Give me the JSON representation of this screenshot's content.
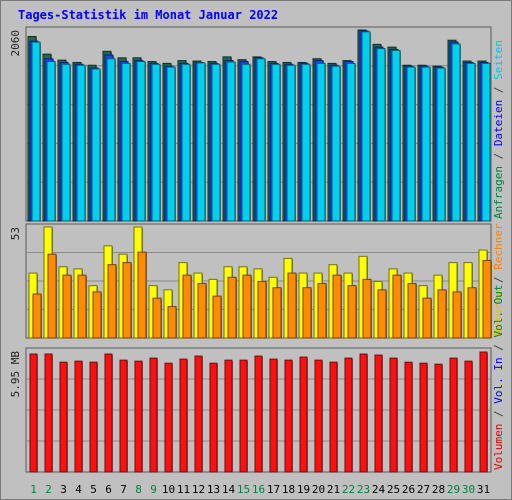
{
  "title": "Tages-Statistik im Monat Januar 2022",
  "chart_data": [
    {
      "type": "bar",
      "panel": "requests",
      "title": "Anfragen / Dateien / Seiten",
      "y_tick_label": "2060",
      "ylim": [
        0,
        2060
      ],
      "categories": [
        "1",
        "2",
        "3",
        "4",
        "5",
        "6",
        "7",
        "8",
        "9",
        "10",
        "11",
        "12",
        "13",
        "14",
        "15",
        "16",
        "17",
        "18",
        "19",
        "20",
        "21",
        "22",
        "23",
        "24",
        "25",
        "26",
        "27",
        "28",
        "29",
        "30",
        "31"
      ],
      "weekend_days": [
        "1",
        "2",
        "8",
        "9",
        "15",
        "16",
        "22",
        "23",
        "29",
        "30"
      ],
      "right_label": [
        {
          "text": "Anfragen",
          "color": "#008040"
        },
        {
          "text": " / ",
          "color": "#404040"
        },
        {
          "text": "Dateien",
          "color": "#0000ff"
        },
        {
          "text": " / ",
          "color": "#404040"
        },
        {
          "text": "Seiten",
          "color": "#00c8e0"
        }
      ],
      "series": [
        {
          "name": "Anfragen",
          "color": "#1e6b4a",
          "values": [
            1990,
            1800,
            1735,
            1710,
            1680,
            1830,
            1760,
            1760,
            1720,
            1700,
            1730,
            1725,
            1720,
            1770,
            1740,
            1770,
            1720,
            1710,
            1710,
            1750,
            1700,
            1730,
            2060,
            1905,
            1875,
            1680,
            1680,
            1670,
            1950,
            1725,
            1725
          ]
        },
        {
          "name": "Dateien",
          "color": "#2040ff",
          "values": [
            1940,
            1750,
            1710,
            1690,
            1650,
            1790,
            1720,
            1730,
            1700,
            1670,
            1700,
            1710,
            1700,
            1730,
            1720,
            1760,
            1700,
            1690,
            1700,
            1730,
            1680,
            1720,
            2050,
            1875,
            1850,
            1670,
            1670,
            1660,
            1930,
            1710,
            1710
          ]
        },
        {
          "name": "Seiten",
          "color": "#00d0f0",
          "values": [
            1930,
            1720,
            1690,
            1680,
            1640,
            1750,
            1700,
            1720,
            1690,
            1660,
            1690,
            1705,
            1690,
            1715,
            1690,
            1750,
            1690,
            1680,
            1690,
            1700,
            1670,
            1700,
            2040,
            1860,
            1840,
            1660,
            1660,
            1650,
            1910,
            1700,
            1700
          ]
        }
      ]
    },
    {
      "type": "bar",
      "panel": "visits",
      "title": "Besuche / Rechner",
      "y_tick_label": "53",
      "ylim": [
        0,
        53
      ],
      "right_label": [
        {
          "text": "Besuche",
          "color": "#e8c000"
        },
        {
          "text": " / ",
          "color": "#404040"
        },
        {
          "text": "Rechner",
          "color": "#ff8000"
        }
      ],
      "series": [
        {
          "name": "Besuche",
          "color": "#ffff00",
          "values": [
            31,
            53,
            34,
            33,
            25,
            44,
            40,
            53,
            25,
            23,
            36,
            31,
            28,
            34,
            34,
            33,
            29,
            38,
            31,
            31,
            35,
            31,
            39,
            27,
            33,
            31,
            25,
            30,
            36,
            36,
            42
          ]
        },
        {
          "name": "Rechner",
          "color": "#ff8c00",
          "values": [
            21,
            40,
            30,
            30,
            22,
            35,
            36,
            41,
            19,
            15,
            30,
            26,
            20,
            29,
            30,
            27,
            24,
            31,
            24,
            26,
            30,
            25,
            28,
            23,
            30,
            26,
            19,
            23,
            22,
            24,
            37
          ]
        }
      ]
    },
    {
      "type": "bar",
      "panel": "volume",
      "title": "Volumen / Vol. In / Vol. Out",
      "y_tick_label": "5.95 MB",
      "ylim": [
        0,
        5.95
      ],
      "right_label": [
        {
          "text": "Volumen",
          "color": "#e00000"
        },
        {
          "text": " / ",
          "color": "#404040"
        },
        {
          "text": "Vol. In",
          "color": "#0000ff"
        },
        {
          "text": " / ",
          "color": "#404040"
        },
        {
          "text": "Vol. Out",
          "color": "#008040"
        }
      ],
      "series": [
        {
          "name": "Volumen",
          "color": "#ff1010",
          "values": [
            5.8,
            5.8,
            5.4,
            5.45,
            5.4,
            5.8,
            5.5,
            5.45,
            5.6,
            5.35,
            5.55,
            5.7,
            5.35,
            5.5,
            5.5,
            5.7,
            5.55,
            5.5,
            5.65,
            5.5,
            5.4,
            5.6,
            5.8,
            5.75,
            5.6,
            5.4,
            5.35,
            5.3,
            5.6,
            5.45,
            5.9
          ]
        }
      ]
    }
  ]
}
